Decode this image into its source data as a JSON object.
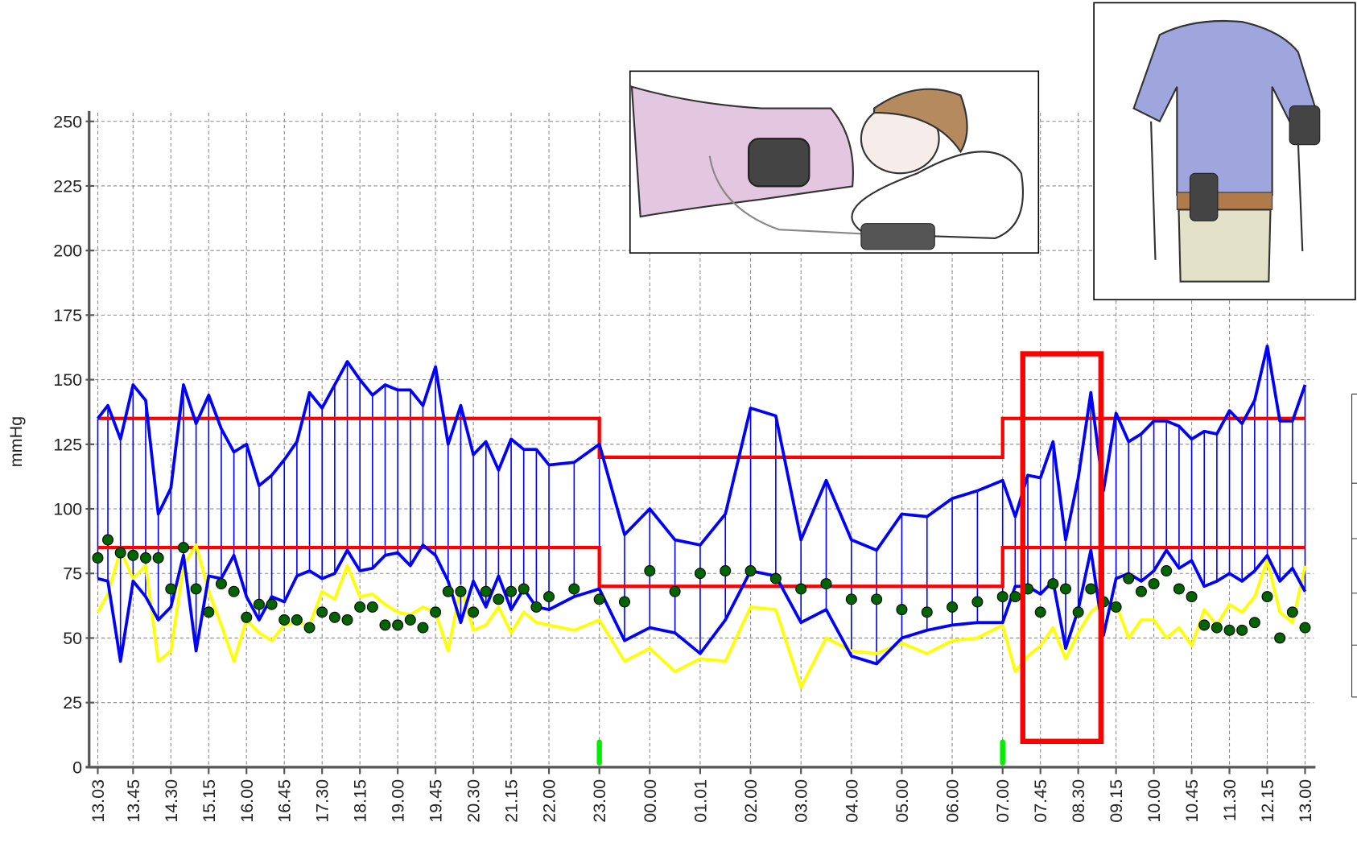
{
  "chart_data": {
    "type": "ambulatory-bp",
    "y_label": "mmHg",
    "ylim": [
      0,
      250
    ],
    "yticks": [
      0,
      25,
      50,
      75,
      100,
      125,
      150,
      175,
      200,
      225,
      250
    ],
    "xlim": [
      13.05,
      37
    ],
    "xticks": [
      {
        "value": 13.05,
        "label": "13.03"
      },
      {
        "value": 13.75,
        "label": "13.45"
      },
      {
        "value": 14.5,
        "label": "14.30"
      },
      {
        "value": 15.25,
        "label": "15.15"
      },
      {
        "value": 16,
        "label": "16.00"
      },
      {
        "value": 16.75,
        "label": "16.45"
      },
      {
        "value": 17.5,
        "label": "17.30"
      },
      {
        "value": 18.25,
        "label": "18.15"
      },
      {
        "value": 19,
        "label": "19.00"
      },
      {
        "value": 19.75,
        "label": "19.45"
      },
      {
        "value": 20.5,
        "label": "20.30"
      },
      {
        "value": 21.25,
        "label": "21.15"
      },
      {
        "value": 22,
        "label": "22.00"
      },
      {
        "value": 23,
        "label": "23.00"
      },
      {
        "value": 24,
        "label": "00.00"
      },
      {
        "value": 25,
        "label": "01.01"
      },
      {
        "value": 26,
        "label": "02.00"
      },
      {
        "value": 27,
        "label": "03.00"
      },
      {
        "value": 28,
        "label": "04.00"
      },
      {
        "value": 29,
        "label": "05.00"
      },
      {
        "value": 30,
        "label": "06.00"
      },
      {
        "value": 31,
        "label": "07.00"
      },
      {
        "value": 31.75,
        "label": "07.45"
      },
      {
        "value": 32.5,
        "label": "08.30"
      },
      {
        "value": 33.25,
        "label": "09.15"
      },
      {
        "value": 34,
        "label": "10.00"
      },
      {
        "value": 34.75,
        "label": "10.45"
      },
      {
        "value": 35.5,
        "label": "11.30"
      },
      {
        "value": 36.25,
        "label": "12.15"
      },
      {
        "value": 37,
        "label": "13.00"
      }
    ],
    "grid": true,
    "x": [
      13.05,
      13.25,
      13.5,
      13.75,
      14,
      14.25,
      14.5,
      14.75,
      15,
      15.25,
      15.5,
      15.75,
      16,
      16.25,
      16.5,
      16.75,
      17,
      17.25,
      17.5,
      17.75,
      18,
      18.25,
      18.5,
      18.75,
      19,
      19.25,
      19.5,
      19.75,
      20,
      20.25,
      20.5,
      20.75,
      21,
      21.25,
      21.5,
      21.75,
      22,
      22.5,
      23,
      23.5,
      24,
      24.5,
      25,
      25.5,
      26,
      26.5,
      27,
      27.5,
      28,
      28.5,
      29,
      29.5,
      30,
      30.5,
      31,
      31.25,
      31.5,
      31.75,
      32,
      32.25,
      32.5,
      32.75,
      33,
      33.25,
      33.5,
      33.75,
      34,
      34.25,
      34.5,
      34.75,
      35,
      35.25,
      35.5,
      35.75,
      36,
      36.25,
      36.5,
      36.75,
      37
    ],
    "range_lines": [
      0,
      1
    ],
    "series": [
      {
        "color": "#0000ff",
        "style": "line",
        "values": [
          135,
          140,
          127,
          148,
          142,
          98,
          108,
          148,
          133,
          144,
          131,
          122,
          125,
          109,
          113,
          119,
          126,
          145,
          139,
          148,
          157,
          150,
          144,
          148,
          146,
          146,
          140,
          155,
          125,
          140,
          121,
          126,
          115,
          127,
          123,
          123,
          117,
          118,
          125,
          90,
          100,
          88,
          86,
          98,
          139,
          136,
          88,
          111,
          88,
          84,
          98,
          97,
          104,
          107,
          111,
          97,
          113,
          112,
          126,
          88,
          112,
          145,
          107,
          137,
          126,
          129,
          134,
          134,
          132,
          127,
          130,
          129,
          138,
          133,
          142,
          163,
          134,
          134,
          148
        ]
      },
      {
        "color": "#0000ff",
        "style": "line",
        "values": [
          73,
          72,
          41,
          72,
          66,
          57,
          62,
          82,
          45,
          74,
          73,
          82,
          66,
          57,
          66,
          64,
          74,
          76,
          73,
          75,
          84,
          76,
          77,
          82,
          83,
          78,
          86,
          82,
          72,
          56,
          72,
          62,
          74,
          61,
          69,
          62,
          61,
          66,
          69,
          49,
          54,
          52,
          44,
          57,
          76,
          74,
          56,
          61,
          43,
          40,
          50,
          53,
          55,
          56,
          56,
          70,
          70,
          67,
          72,
          46,
          61,
          84,
          51,
          73,
          75,
          72,
          76,
          84,
          77,
          80,
          70,
          72,
          75,
          72,
          76,
          82,
          72,
          77,
          68
        ]
      },
      {
        "color": "#006400",
        "style": "dots",
        "values": [
          81,
          88,
          83,
          82,
          81,
          81,
          69,
          85,
          69,
          60,
          71,
          68,
          58,
          63,
          63,
          57,
          57,
          54,
          60,
          58,
          57,
          62,
          62,
          55,
          55,
          57,
          54,
          60,
          68,
          68,
          60,
          68,
          65,
          68,
          69,
          62,
          66,
          69,
          65,
          64,
          76,
          68,
          75,
          76,
          76,
          73,
          69,
          71,
          65,
          65,
          61,
          60,
          62,
          64,
          66,
          66,
          69,
          60,
          71,
          69,
          60,
          69,
          64,
          62,
          73,
          68,
          71,
          76,
          69,
          66,
          55,
          54,
          53,
          53,
          56,
          66,
          50,
          60,
          54
        ]
      },
      {
        "color": "#ffff00",
        "style": "line",
        "values": [
          60,
          67,
          84,
          73,
          78,
          41,
          45,
          78,
          86,
          68,
          55,
          41,
          57,
          52,
          49,
          55,
          56,
          55,
          68,
          65,
          78,
          66,
          67,
          63,
          60,
          59,
          62,
          60,
          45,
          70,
          53,
          55,
          62,
          52,
          60,
          56,
          55,
          53,
          57,
          41,
          46,
          37,
          42,
          41,
          62,
          61,
          31,
          50,
          45,
          44,
          48,
          44,
          49,
          50,
          55,
          37,
          43,
          47,
          54,
          42,
          52,
          60,
          64,
          63,
          50,
          57,
          57,
          50,
          54,
          47,
          61,
          55,
          63,
          60,
          66,
          80,
          60,
          56,
          78
        ]
      }
    ],
    "targets": {
      "color": "#ff0000",
      "x": [
        13.05,
        23,
        23,
        31,
        31,
        37
      ],
      "systolic": [
        135,
        135,
        120,
        120,
        135,
        135
      ],
      "diastolic": [
        85,
        85,
        70,
        70,
        85,
        85
      ]
    },
    "night_markers": {
      "color": "#00ee00",
      "x": [
        23,
        31
      ]
    },
    "highlight": {
      "color": "#ff0000",
      "xlim": [
        31.4,
        32.95
      ],
      "ylim": [
        10,
        160
      ]
    }
  }
}
